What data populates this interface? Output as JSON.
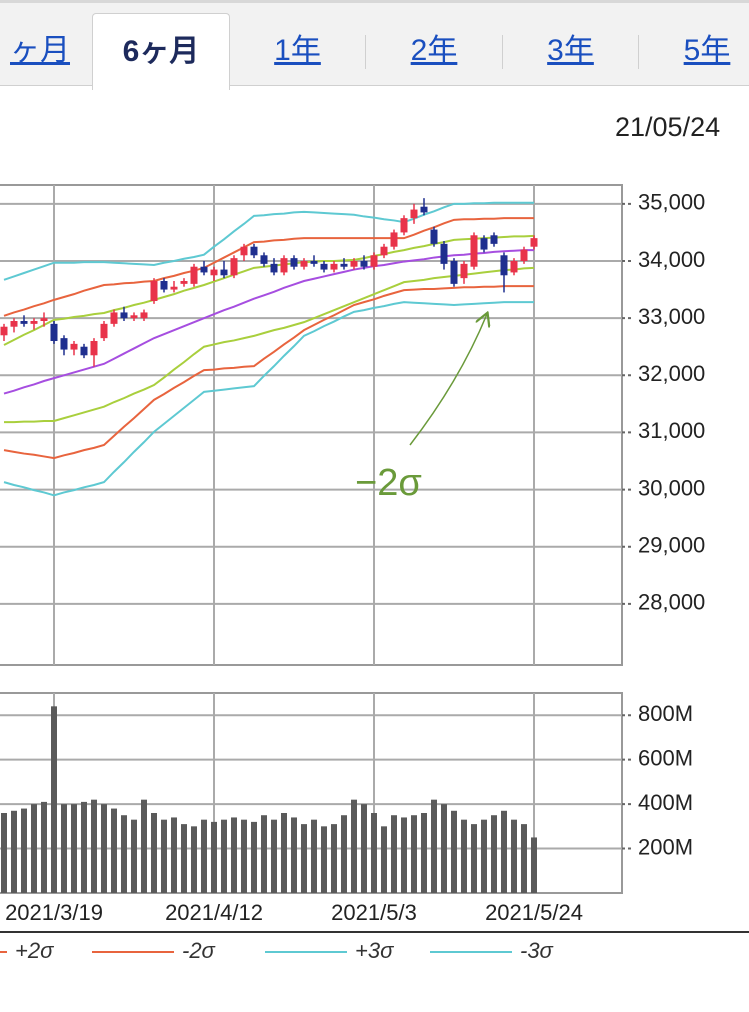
{
  "tabs": [
    "ヶ月",
    "6ヶ月",
    "1年",
    "2年",
    "3年",
    "5年"
  ],
  "date": "21/05/24",
  "chart_data": [
    {
      "type": "candlestick",
      "up_color": "#e8334a",
      "down_color": "#1f2f8f",
      "annotation": "−2σ",
      "open": [
        32700,
        32850,
        32950,
        32900,
        32950,
        32900,
        32650,
        32450,
        32500,
        32350,
        32650,
        32900,
        33100,
        33000,
        33000,
        33300,
        33650,
        33500,
        33600,
        33600,
        33900,
        33750,
        33850,
        33750,
        34100,
        34250,
        34100,
        33950,
        33800,
        34050,
        33900,
        34000,
        33950,
        33850,
        33950,
        33900,
        34000,
        33900,
        34100,
        34250,
        34500,
        34750,
        34950,
        34550,
        34300,
        34000,
        33700,
        33900,
        34400,
        34450,
        34100,
        33800,
        34000,
        34250
      ],
      "high": [
        32900,
        33000,
        33050,
        33000,
        33100,
        32950,
        32700,
        32600,
        32550,
        32650,
        32950,
        33150,
        33200,
        33100,
        33150,
        33700,
        33700,
        33650,
        33700,
        33950,
        34000,
        33900,
        34000,
        34100,
        34300,
        34300,
        34150,
        34050,
        34100,
        34100,
        34050,
        34100,
        34000,
        34000,
        34050,
        34050,
        34100,
        34150,
        34300,
        34550,
        34800,
        35000,
        35100,
        34600,
        34350,
        34050,
        34000,
        34500,
        34450,
        34500,
        34150,
        34050,
        34250,
        34450
      ],
      "low": [
        32600,
        32750,
        32850,
        32800,
        32850,
        32550,
        32350,
        32350,
        32300,
        32150,
        32600,
        32850,
        32950,
        32950,
        32950,
        33250,
        33450,
        33450,
        33550,
        33550,
        33750,
        33650,
        33700,
        33700,
        34000,
        34050,
        33900,
        33750,
        33750,
        33850,
        33850,
        33900,
        33800,
        33800,
        33850,
        33850,
        33850,
        33850,
        34050,
        34200,
        34450,
        34650,
        34800,
        34250,
        33850,
        33550,
        33600,
        33850,
        34150,
        34250,
        33450,
        33750,
        33950,
        34200
      ],
      "close": [
        32850,
        32950,
        32900,
        32950,
        33000,
        32600,
        32450,
        32550,
        32350,
        32600,
        32900,
        33100,
        33000,
        33050,
        33100,
        33650,
        33500,
        33550,
        33650,
        33900,
        33800,
        33850,
        33750,
        34050,
        34250,
        34100,
        33950,
        33800,
        34050,
        33900,
        34000,
        33950,
        33850,
        33950,
        33900,
        34000,
        33900,
        34100,
        34250,
        34500,
        34750,
        34900,
        34850,
        34300,
        33950,
        33600,
        33950,
        34450,
        34200,
        34300,
        33750,
        34000,
        34200,
        34400
      ],
      "series": [
        {
          "color": "#a64ee0",
          "values": [
            31680,
            31730,
            31790,
            31840,
            31900,
            31950,
            32000,
            32050,
            32100,
            32150,
            32200,
            32290,
            32380,
            32470,
            32560,
            32650,
            32720,
            32790,
            32860,
            32930,
            33000,
            33070,
            33140,
            33200,
            33270,
            33340,
            33400,
            33460,
            33530,
            33590,
            33650,
            33690,
            33730,
            33770,
            33810,
            33850,
            33880,
            33910,
            33930,
            33960,
            33990,
            34010,
            34030,
            34060,
            34080,
            34100,
            34110,
            34130,
            34140,
            34160,
            34170,
            34180,
            34190,
            34190
          ]
        },
        {
          "color": "#a9cf3d",
          "values": [
            32530,
            32620,
            32710,
            32790,
            32880,
            32970,
            32990,
            33020,
            33040,
            33070,
            33090,
            33140,
            33180,
            33230,
            33270,
            33320,
            33370,
            33420,
            33480,
            33530,
            33580,
            33640,
            33700,
            33760,
            33820,
            33880,
            33900,
            33920,
            33940,
            33960,
            33980,
            33990,
            34000,
            34000,
            34010,
            34020,
            34050,
            34090,
            34120,
            34160,
            34190,
            34230,
            34260,
            34300,
            34330,
            34370,
            34380,
            34390,
            34400,
            34410,
            34420,
            34430,
            34430,
            34440
          ]
        },
        {
          "color": "#a9cf3d",
          "values": [
            31180,
            31180,
            31190,
            31190,
            31200,
            31200,
            31250,
            31300,
            31350,
            31400,
            31450,
            31530,
            31600,
            31680,
            31750,
            31830,
            31960,
            32100,
            32230,
            32370,
            32500,
            32540,
            32580,
            32610,
            32650,
            32690,
            32740,
            32790,
            32830,
            32880,
            32930,
            33000,
            33070,
            33140,
            33210,
            33280,
            33350,
            33420,
            33490,
            33560,
            33630,
            33650,
            33670,
            33700,
            33720,
            33740,
            33760,
            33780,
            33800,
            33820,
            33840,
            33850,
            33870,
            33880
          ]
        },
        {
          "name": "+2σ",
          "color": "#e8643e",
          "values": [
            33040,
            33100,
            33150,
            33210,
            33260,
            33320,
            33370,
            33420,
            33480,
            33530,
            33580,
            33590,
            33610,
            33620,
            33640,
            33650,
            33700,
            33740,
            33790,
            33830,
            33880,
            33970,
            34060,
            34150,
            34240,
            34330,
            34340,
            34360,
            34370,
            34390,
            34400,
            34400,
            34400,
            34400,
            34400,
            34400,
            34400,
            34400,
            34400,
            34400,
            34400,
            34460,
            34530,
            34590,
            34660,
            34720,
            34730,
            34730,
            34740,
            34740,
            34750,
            34750,
            34750,
            34750
          ]
        },
        {
          "name": "-2σ",
          "color": "#e8643e",
          "values": [
            30690,
            30660,
            30630,
            30610,
            30580,
            30550,
            30600,
            30640,
            30690,
            30730,
            30780,
            30940,
            31100,
            31250,
            31410,
            31570,
            31670,
            31780,
            31880,
            31990,
            32090,
            32100,
            32120,
            32130,
            32150,
            32160,
            32290,
            32410,
            32540,
            32660,
            32790,
            32880,
            32970,
            33050,
            33140,
            33230,
            33280,
            33330,
            33390,
            33440,
            33490,
            33500,
            33510,
            33510,
            33520,
            33530,
            33540,
            33540,
            33550,
            33550,
            33560,
            33560,
            33560,
            33560
          ]
        },
        {
          "name": "+3σ",
          "color": "#5ec9d2",
          "values": [
            33670,
            33730,
            33790,
            33850,
            33910,
            33970,
            33970,
            33970,
            33980,
            33980,
            33980,
            33970,
            33960,
            33950,
            33940,
            33930,
            33970,
            34000,
            34040,
            34070,
            34110,
            34250,
            34380,
            34520,
            34650,
            34790,
            34800,
            34820,
            34830,
            34850,
            34860,
            34850,
            34840,
            34830,
            34820,
            34810,
            34780,
            34760,
            34730,
            34710,
            34680,
            34740,
            34810,
            34870,
            34940,
            35000,
            35000,
            35010,
            35010,
            35020,
            35020,
            35020,
            35020,
            35020
          ]
        },
        {
          "name": "-3σ",
          "color": "#5ec9d2",
          "values": [
            30130,
            30080,
            30040,
            29990,
            29950,
            29900,
            29950,
            29990,
            30040,
            30080,
            30130,
            30310,
            30480,
            30660,
            30830,
            31010,
            31150,
            31290,
            31430,
            31570,
            31710,
            31730,
            31750,
            31770,
            31790,
            31810,
            31990,
            32160,
            32340,
            32510,
            32690,
            32770,
            32860,
            32940,
            33030,
            33110,
            33140,
            33180,
            33210,
            33250,
            33280,
            33270,
            33260,
            33250,
            33240,
            33230,
            33240,
            33250,
            33260,
            33270,
            33280,
            33280,
            33280,
            33280
          ]
        }
      ],
      "ylim": [
        26930,
        35330
      ],
      "yticks": [
        {
          "value": 35000,
          "label": "35,000"
        },
        {
          "value": 34000,
          "label": "34,000"
        },
        {
          "value": 33000,
          "label": "33,000"
        },
        {
          "value": 32000,
          "label": "32,000"
        },
        {
          "value": 31000,
          "label": "31,000"
        },
        {
          "value": 30000,
          "label": "30,000"
        },
        {
          "value": 29000,
          "label": "29,000"
        },
        {
          "value": 28000,
          "label": "28,000"
        }
      ],
      "grid": true
    },
    {
      "type": "bar",
      "color": "#5a5a5a",
      "categories": [
        null,
        null,
        null,
        null,
        null,
        "2021/3/19",
        null,
        null,
        null,
        null,
        null,
        null,
        null,
        null,
        null,
        null,
        null,
        null,
        null,
        null,
        null,
        "2021/4/12",
        null,
        null,
        null,
        null,
        null,
        null,
        null,
        null,
        null,
        null,
        null,
        null,
        null,
        null,
        null,
        "2021/5/3",
        null,
        null,
        null,
        null,
        null,
        null,
        null,
        null,
        null,
        null,
        null,
        null,
        null,
        null,
        null,
        "2021/5/24"
      ],
      "values": [
        360,
        370,
        380,
        400,
        410,
        840,
        400,
        400,
        410,
        420,
        400,
        380,
        350,
        330,
        420,
        360,
        330,
        340,
        310,
        300,
        330,
        320,
        330,
        340,
        330,
        320,
        350,
        330,
        360,
        340,
        310,
        330,
        300,
        310,
        350,
        420,
        400,
        360,
        300,
        350,
        340,
        350,
        360,
        420,
        400,
        370,
        330,
        310,
        330,
        350,
        370,
        330,
        310,
        250
      ],
      "ylim": [
        0,
        900
      ],
      "yticks": [
        {
          "value": 800,
          "label": "800M"
        },
        {
          "value": 600,
          "label": "600M"
        },
        {
          "value": 400,
          "label": "400M"
        },
        {
          "value": 200,
          "label": "200M"
        }
      ],
      "grid": true
    }
  ]
}
